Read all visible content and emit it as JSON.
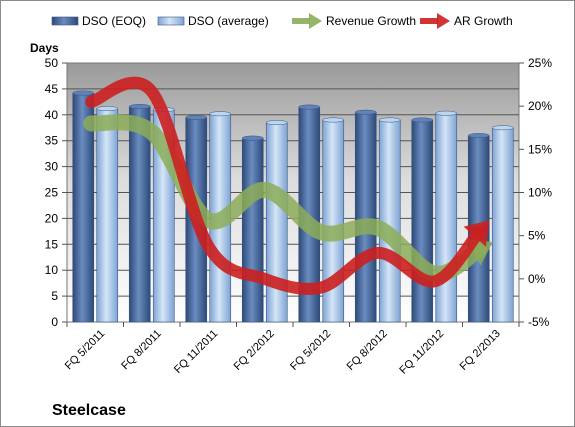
{
  "chart_data": {
    "type": "bar",
    "title": "Steelcase",
    "ylabel": "Days",
    "ylim": [
      0,
      50
    ],
    "yticks": [
      0,
      5,
      10,
      15,
      20,
      25,
      30,
      35,
      40,
      45,
      50
    ],
    "y2lim": [
      -5,
      25
    ],
    "y2ticks": [
      "-5%",
      "0%",
      "5%",
      "10%",
      "15%",
      "20%",
      "25%"
    ],
    "y2values": [
      -5,
      0,
      5,
      10,
      15,
      20,
      25
    ],
    "grid": true,
    "legend_position": "top",
    "categories": [
      "FQ 5/2011",
      "FQ 8/2011",
      "FQ 11/2011",
      "FQ 2/2012",
      "FQ 5/2012",
      "FQ 8/2012",
      "FQ 11/2012",
      "FQ 2/2013"
    ],
    "series": [
      {
        "name": "DSO (EOQ)",
        "kind": "bar",
        "axis": "left",
        "color": "#4a6fa8",
        "values": [
          44.2,
          41.6,
          39.5,
          35.5,
          41.5,
          40.5,
          39.0,
          36.0
        ]
      },
      {
        "name": "DSO (average)",
        "kind": "bar",
        "axis": "left",
        "color": "#a9c6ea",
        "values": [
          41.2,
          41.0,
          40.2,
          38.5,
          39.0,
          39.0,
          40.3,
          37.5
        ]
      },
      {
        "name": "Revenue Growth",
        "kind": "arrow-line",
        "axis": "right",
        "color": "#8cad58",
        "values": [
          18.0,
          17.0,
          6.8,
          10.3,
          5.4,
          5.9,
          0.6,
          3.4
        ]
      },
      {
        "name": "AR Growth",
        "kind": "arrow-line",
        "axis": "right",
        "color": "#cc1f1f",
        "values": [
          20.5,
          21.7,
          3.8,
          0.0,
          -1.0,
          3.0,
          -0.3,
          5.4
        ]
      }
    ]
  }
}
